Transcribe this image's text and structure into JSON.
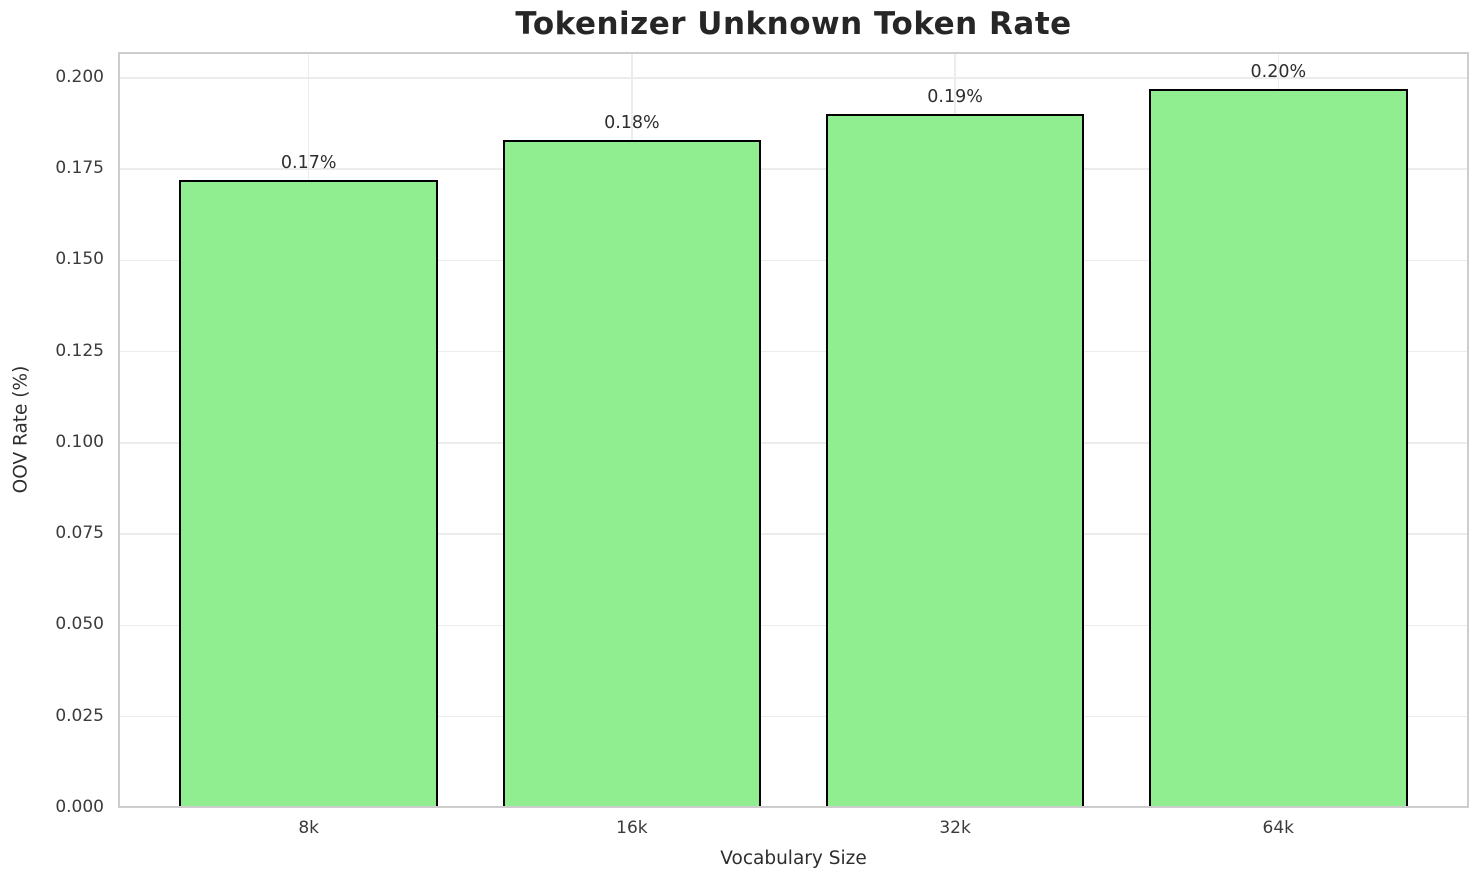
{
  "chart_data": {
    "type": "bar",
    "title": "Tokenizer Unknown Token Rate",
    "xlabel": "Vocabulary Size",
    "ylabel": "OOV Rate (%)",
    "categories": [
      "8k",
      "16k",
      "32k",
      "64k"
    ],
    "values": [
      0.172,
      0.183,
      0.19,
      0.197
    ],
    "bar_labels": [
      "0.17%",
      "0.18%",
      "0.19%",
      "0.20%"
    ],
    "ytick_values": [
      0.0,
      0.025,
      0.05,
      0.075,
      0.1,
      0.125,
      0.15,
      0.175,
      0.2
    ],
    "ytick_labels": [
      "0.000",
      "0.025",
      "0.050",
      "0.075",
      "0.100",
      "0.125",
      "0.150",
      "0.175",
      "0.200"
    ],
    "ylim": [
      0,
      0.2071
    ],
    "xlim": [
      -0.59,
      3.59
    ],
    "bar_width": 0.8,
    "grid": true,
    "legend_position": "none",
    "colors": {
      "bar_fill": "#90EE90",
      "bar_edge": "#000000",
      "grid": "#ececec",
      "frame": "#cdcdcd",
      "title_text": "#262626",
      "tick_text": "#3b3b3b",
      "background": "#ffffff"
    }
  }
}
